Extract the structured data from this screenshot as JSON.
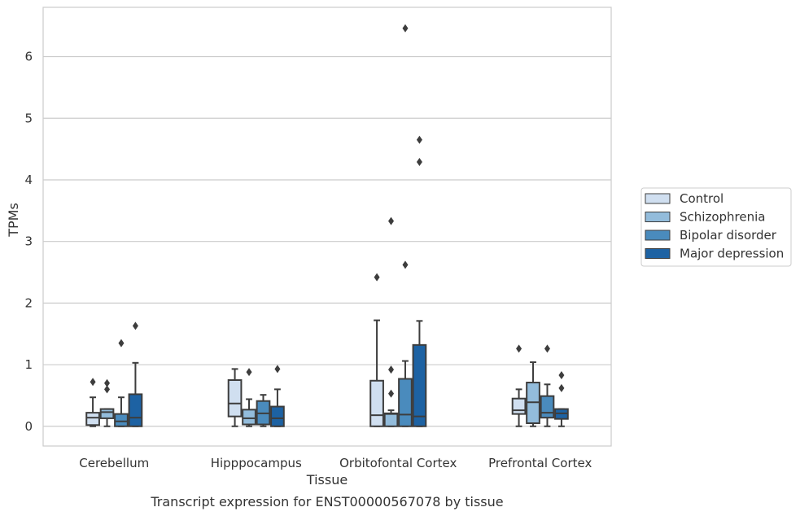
{
  "caption": "Transcript expression for ENST00000567078 by tissue",
  "chart_data": {
    "type": "box",
    "title": "",
    "xlabel": "Tissue",
    "ylabel": "TPMs",
    "ylim": [
      -0.32,
      6.8
    ],
    "yticks": [
      0,
      1,
      2,
      3,
      4,
      5,
      6
    ],
    "grid": "horizontal",
    "legend_position": "right",
    "categories": [
      "Cerebellum",
      "Hipppocampus",
      "Orbitofontal Cortex",
      "Prefrontal Cortex"
    ],
    "series": [
      {
        "name": "Control",
        "color": "#d0dff0",
        "boxes": [
          {
            "whislo": 0.0,
            "q1": 0.02,
            "med": 0.14,
            "q3": 0.22,
            "whishi": 0.47,
            "fliers": [
              0.72
            ]
          },
          {
            "whislo": 0.0,
            "q1": 0.16,
            "med": 0.37,
            "q3": 0.75,
            "whishi": 0.93,
            "fliers": []
          },
          {
            "whislo": 0.0,
            "q1": 0.0,
            "med": 0.18,
            "q3": 0.74,
            "whishi": 1.72,
            "fliers": [
              2.42
            ]
          },
          {
            "whislo": 0.0,
            "q1": 0.2,
            "med": 0.26,
            "q3": 0.45,
            "whishi": 0.6,
            "fliers": [
              1.26
            ]
          }
        ]
      },
      {
        "name": "Schizophrenia",
        "color": "#93bcdb",
        "boxes": [
          {
            "whislo": 0.0,
            "q1": 0.13,
            "med": 0.23,
            "q3": 0.28,
            "whishi": 0.28,
            "fliers": [
              0.7,
              0.6
            ]
          },
          {
            "whislo": 0.0,
            "q1": 0.03,
            "med": 0.13,
            "q3": 0.27,
            "whishi": 0.44,
            "fliers": [
              0.88
            ]
          },
          {
            "whislo": 0.0,
            "q1": 0.0,
            "med": 0.2,
            "q3": 0.21,
            "whishi": 0.26,
            "fliers": [
              3.33,
              0.92,
              0.53
            ]
          },
          {
            "whislo": 0.0,
            "q1": 0.05,
            "med": 0.39,
            "q3": 0.71,
            "whishi": 1.04,
            "fliers": []
          }
        ]
      },
      {
        "name": "Bipolar disorder",
        "color": "#4a8bbd",
        "boxes": [
          {
            "whislo": 0.0,
            "q1": 0.0,
            "med": 0.08,
            "q3": 0.2,
            "whishi": 0.47,
            "fliers": [
              1.35
            ]
          },
          {
            "whislo": 0.0,
            "q1": 0.03,
            "med": 0.21,
            "q3": 0.41,
            "whishi": 0.51,
            "fliers": []
          },
          {
            "whislo": 0.0,
            "q1": 0.0,
            "med": 0.19,
            "q3": 0.77,
            "whishi": 1.06,
            "fliers": [
              6.46,
              2.62
            ]
          },
          {
            "whislo": 0.0,
            "q1": 0.14,
            "med": 0.22,
            "q3": 0.49,
            "whishi": 0.68,
            "fliers": [
              1.26
            ]
          }
        ]
      },
      {
        "name": "Major depression",
        "color": "#1d62a3",
        "boxes": [
          {
            "whislo": 0.0,
            "q1": 0.0,
            "med": 0.14,
            "q3": 0.52,
            "whishi": 1.03,
            "fliers": [
              1.63
            ]
          },
          {
            "whislo": 0.0,
            "q1": 0.0,
            "med": 0.13,
            "q3": 0.32,
            "whishi": 0.6,
            "fliers": [
              0.93
            ]
          },
          {
            "whislo": 0.0,
            "q1": 0.0,
            "med": 0.16,
            "q3": 1.32,
            "whishi": 1.71,
            "fliers": [
              4.65,
              4.29
            ]
          },
          {
            "whislo": 0.0,
            "q1": 0.12,
            "med": 0.21,
            "q3": 0.28,
            "whishi": 0.28,
            "fliers": [
              0.83,
              0.62
            ]
          }
        ]
      }
    ]
  }
}
